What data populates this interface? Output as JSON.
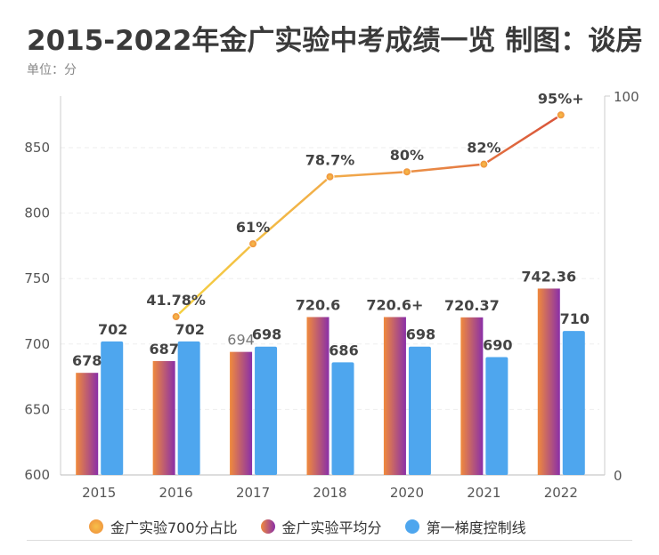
{
  "title": "2015-2022年金广实验中考成绩一览 制图：谈房",
  "unit_label": "单位：分",
  "chart_data": {
    "type": "bar+line",
    "categories": [
      "2015",
      "2016",
      "2017",
      "2018",
      "2020",
      "2021",
      "2022"
    ],
    "left_axis": {
      "ylim": [
        600,
        890
      ],
      "ticks": [
        600,
        650,
        700,
        750,
        800,
        850
      ]
    },
    "right_axis": {
      "ylim": [
        0,
        100
      ],
      "ticks": [
        0,
        100
      ]
    },
    "series": [
      {
        "name": "金广实验700分占比",
        "type": "line",
        "axis": "right",
        "values": [
          null,
          41.78,
          61,
          78.7,
          80,
          82,
          95
        ],
        "labels": [
          "",
          "41.78%",
          "61%",
          "78.7%",
          "80%",
          "82%",
          "95%+"
        ],
        "color_start": "#f5c542",
        "color_end": "#d9533a"
      },
      {
        "name": "金广实验平均分",
        "type": "bar",
        "axis": "left",
        "values": [
          678,
          687,
          694,
          720.6,
          720.6,
          720.37,
          742.36
        ],
        "labels": [
          "678",
          "687",
          "694",
          "720.6",
          "720.6+",
          "720.37",
          "742.36"
        ],
        "color_start": "#f08a3c",
        "color_end": "#8a2fa8"
      },
      {
        "name": "第一梯度控制线",
        "type": "bar",
        "axis": "left",
        "values": [
          702,
          702,
          698,
          686,
          698,
          690,
          710
        ],
        "labels": [
          "702",
          "702",
          "698",
          "686",
          "698",
          "690",
          "710"
        ],
        "color": "#4ea6ee"
      }
    ],
    "grid": true,
    "legend_position": "bottom"
  }
}
